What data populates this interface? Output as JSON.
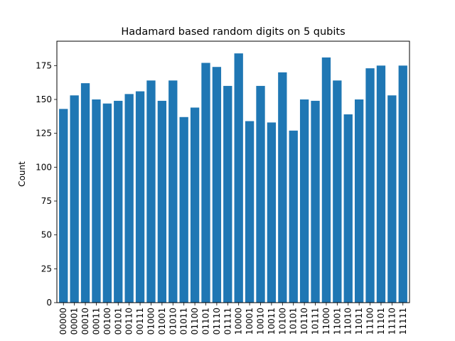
{
  "chart_data": {
    "type": "bar",
    "title": "Hadamard based random digits on 5 qubits",
    "xlabel": "",
    "ylabel": "Count",
    "ylim": [
      0,
      193
    ],
    "yticks": [
      0,
      25,
      50,
      75,
      100,
      125,
      150,
      175
    ],
    "grid": false,
    "legend": "none",
    "bar_color": "#1f77b4",
    "categories": [
      "00000",
      "00001",
      "00010",
      "00011",
      "00100",
      "00101",
      "00110",
      "00111",
      "01000",
      "01001",
      "01010",
      "01011",
      "01100",
      "01101",
      "01110",
      "01111",
      "10000",
      "10001",
      "10010",
      "10011",
      "10100",
      "10101",
      "10110",
      "10111",
      "11000",
      "11001",
      "11010",
      "11011",
      "11100",
      "11101",
      "11110",
      "11111"
    ],
    "values": [
      143,
      153,
      162,
      150,
      147,
      149,
      154,
      156,
      164,
      149,
      164,
      137,
      144,
      177,
      174,
      160,
      184,
      134,
      160,
      133,
      170,
      127,
      150,
      149,
      181,
      164,
      139,
      150,
      173,
      175,
      153,
      175
    ]
  }
}
